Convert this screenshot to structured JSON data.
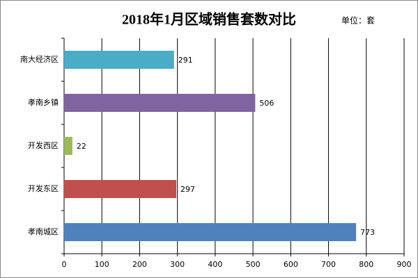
{
  "chart_data": {
    "type": "bar",
    "orientation": "horizontal",
    "title": "2018年1月区域销售套数对比",
    "unit_label": "单位：套",
    "categories": [
      "南大经济区",
      "孝南乡镇",
      "开发西区",
      "开发东区",
      "孝南城区"
    ],
    "values": [
      291,
      506,
      22,
      297,
      773
    ],
    "colors": [
      "#4bacc6",
      "#8064a2",
      "#9bbb59",
      "#c0504d",
      "#4f81bd"
    ],
    "xlim": [
      0,
      900
    ],
    "xticks": [
      0,
      100,
      200,
      300,
      400,
      500,
      600,
      700,
      800,
      900
    ],
    "grid": true
  }
}
